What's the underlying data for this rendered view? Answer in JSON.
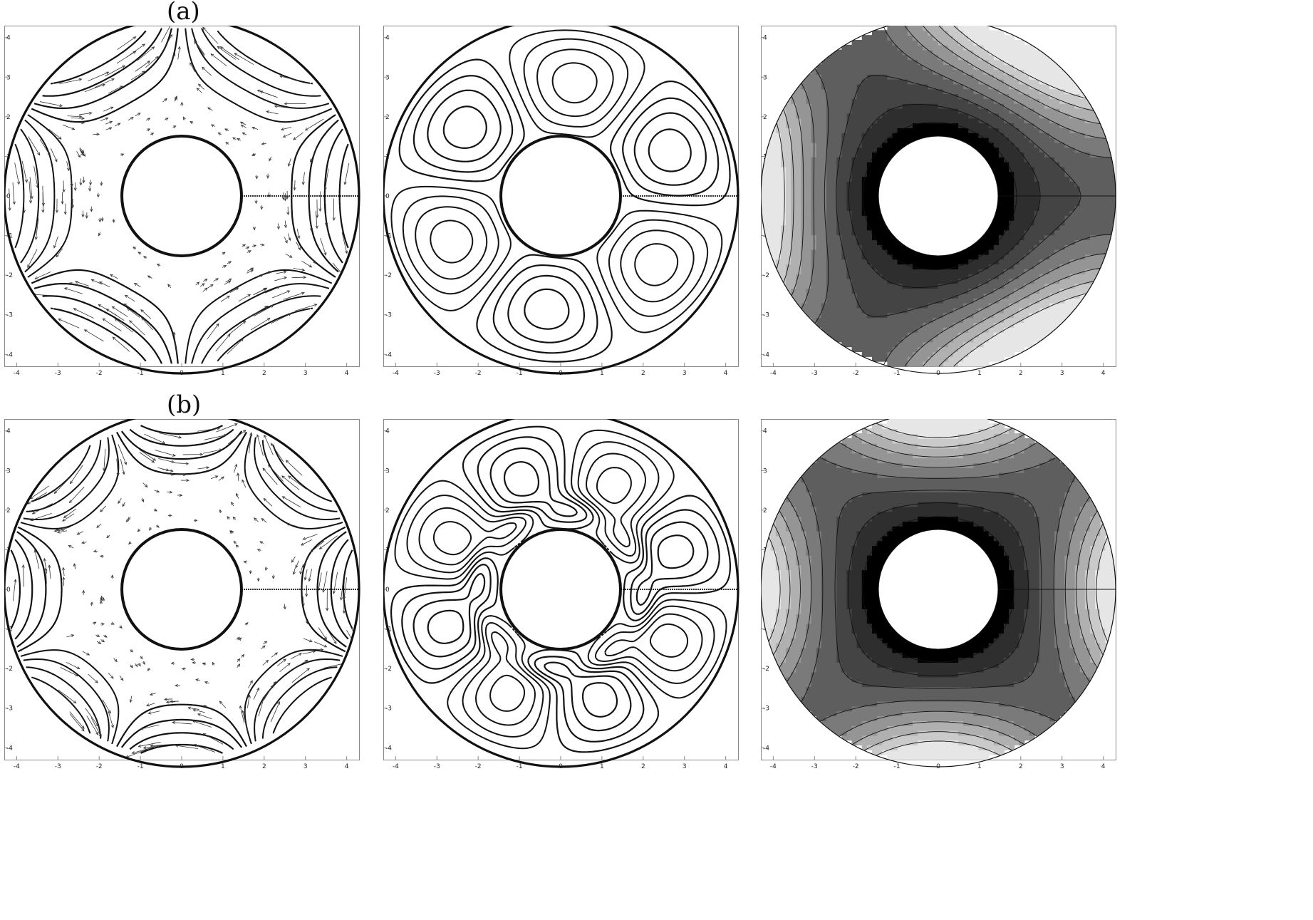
{
  "figure": {
    "rows": [
      {
        "label": "(a)",
        "symmetry": 3,
        "panels": [
          {
            "kind": "streamlines-with-vectors",
            "x_ticks": [
              "-4",
              "-3",
              "-2",
              "-1",
              "0",
              "1",
              "2",
              "3",
              "4"
            ],
            "y_ticks": [
              "4",
              "3",
              "2",
              "1",
              "0",
              "-1",
              "-2",
              "-3",
              "-4"
            ]
          },
          {
            "kind": "streamlines",
            "x_ticks": [
              "-4",
              "-3",
              "-2",
              "-1",
              "0",
              "1",
              "2",
              "3",
              "4"
            ],
            "y_ticks": [
              "4",
              "3",
              "2",
              "1",
              "0",
              "-1",
              "-2",
              "-3",
              "-4"
            ]
          },
          {
            "kind": "shaded-contours",
            "x_ticks": [
              "-4",
              "-3",
              "-2",
              "-1",
              "0",
              "1",
              "2",
              "3",
              "4"
            ],
            "y_ticks": [
              "4",
              "3",
              "2",
              "1",
              "0",
              "-1",
              "-2",
              "-3",
              "-4"
            ]
          }
        ]
      },
      {
        "label": "(b)",
        "symmetry": 4,
        "panels": [
          {
            "kind": "streamlines-with-vectors",
            "x_ticks": [
              "-4",
              "-3",
              "-2",
              "-1",
              "0",
              "1",
              "2",
              "3",
              "4"
            ],
            "y_ticks": [
              "4",
              "3",
              "2",
              "1",
              "0",
              "-1",
              "-2",
              "-3",
              "-4"
            ]
          },
          {
            "kind": "streamlines",
            "x_ticks": [
              "-4",
              "-3",
              "-2",
              "-1",
              "0",
              "1",
              "2",
              "3",
              "4"
            ],
            "y_ticks": [
              "4",
              "3",
              "2",
              "1",
              "0",
              "-1",
              "-2",
              "-3",
              "-4"
            ]
          },
          {
            "kind": "shaded-contours",
            "x_ticks": [
              "-4",
              "-3",
              "-2",
              "-1",
              "0",
              "1",
              "2",
              "3",
              "4"
            ],
            "y_ticks": [
              "4",
              "3",
              "2",
              "1",
              "0",
              "-1",
              "-2",
              "-3",
              "-4"
            ]
          }
        ]
      }
    ],
    "colors": {
      "ink": "#111111",
      "frame": "#888888",
      "shade_levels": [
        "#000000",
        "#2e2e2e",
        "#444444",
        "#5e5e5e",
        "#7a7a7a",
        "#959595",
        "#b0b0b0",
        "#cacaca",
        "#e6e6e6"
      ]
    }
  }
}
